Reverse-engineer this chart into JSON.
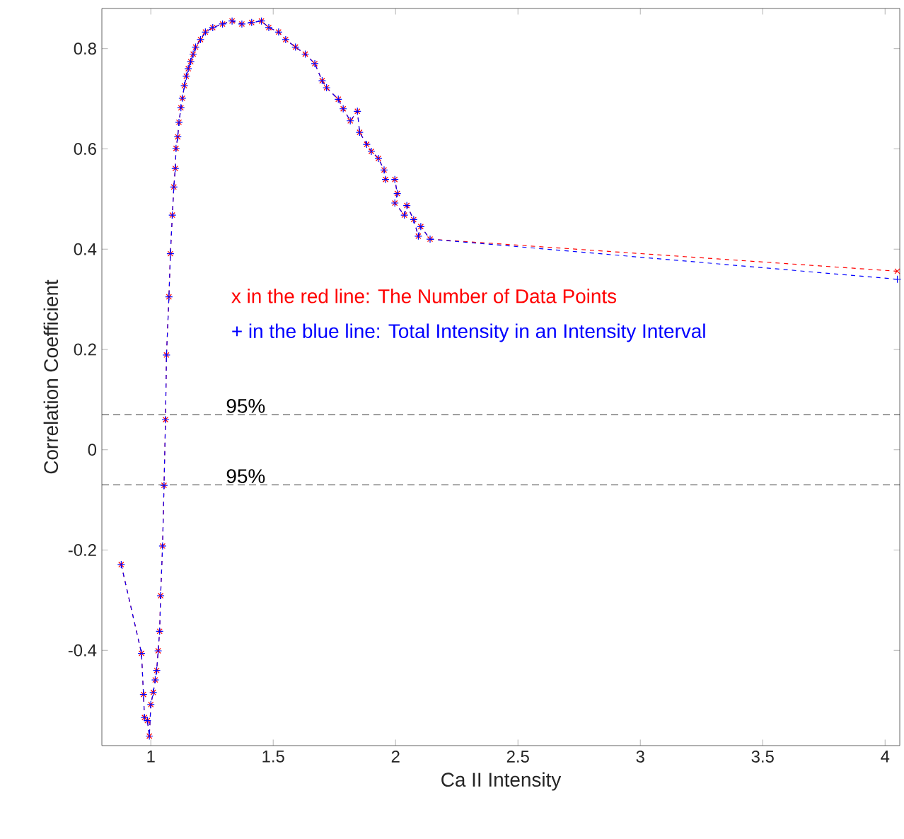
{
  "chart_data": {
    "type": "line",
    "xlabel": "Ca II  Intensity",
    "ylabel": "Correlation Coefficient",
    "x": [
      0.879,
      0.962,
      0.97,
      0.974,
      0.986,
      0.994,
      1.0,
      1.01,
      1.018,
      1.024,
      1.03,
      1.036,
      1.04,
      1.048,
      1.054,
      1.06,
      1.064,
      1.074,
      1.08,
      1.088,
      1.094,
      1.1,
      1.103,
      1.11,
      1.115,
      1.123,
      1.129,
      1.137,
      1.145,
      1.153,
      1.163,
      1.173,
      1.183,
      1.203,
      1.223,
      1.253,
      1.293,
      1.332,
      1.372,
      1.412,
      1.452,
      1.482,
      1.522,
      1.551,
      1.591,
      1.631,
      1.67,
      1.7,
      1.718,
      1.766,
      1.786,
      1.815,
      1.844,
      1.853,
      1.882,
      1.901,
      1.93,
      1.953,
      1.959,
      1.997,
      2.007,
      1.997,
      2.036,
      2.046,
      2.074,
      2.093,
      2.103,
      2.141,
      4.05
    ],
    "series": [
      {
        "name": "x in the red line: The Number of Data Points",
        "color": "#ff0000",
        "marker": "cross",
        "values": [
          -0.229,
          -0.406,
          -0.488,
          -0.534,
          -0.54,
          -0.571,
          -0.508,
          -0.484,
          -0.459,
          -0.44,
          -0.401,
          -0.362,
          -0.291,
          -0.192,
          -0.071,
          0.06,
          0.189,
          0.305,
          0.391,
          0.468,
          0.524,
          0.561,
          0.601,
          0.624,
          0.653,
          0.682,
          0.701,
          0.726,
          0.745,
          0.76,
          0.774,
          0.789,
          0.803,
          0.818,
          0.833,
          0.842,
          0.849,
          0.855,
          0.849,
          0.852,
          0.855,
          0.842,
          0.833,
          0.818,
          0.803,
          0.789,
          0.77,
          0.736,
          0.722,
          0.699,
          0.68,
          0.656,
          0.675,
          0.633,
          0.609,
          0.595,
          0.581,
          0.558,
          0.539,
          0.539,
          0.511,
          0.492,
          0.468,
          0.487,
          0.459,
          0.426,
          0.445,
          0.42,
          0.356
        ]
      },
      {
        "name": "+ in the blue line:  Total Intensity in an Intensity Interval",
        "color": "#0000ff",
        "marker": "plus",
        "values": [
          -0.229,
          -0.406,
          -0.488,
          -0.534,
          -0.54,
          -0.571,
          -0.508,
          -0.484,
          -0.459,
          -0.44,
          -0.401,
          -0.362,
          -0.291,
          -0.192,
          -0.071,
          0.06,
          0.189,
          0.305,
          0.391,
          0.468,
          0.524,
          0.561,
          0.601,
          0.624,
          0.653,
          0.682,
          0.701,
          0.726,
          0.745,
          0.76,
          0.774,
          0.789,
          0.803,
          0.818,
          0.833,
          0.842,
          0.849,
          0.855,
          0.849,
          0.852,
          0.855,
          0.842,
          0.833,
          0.818,
          0.803,
          0.789,
          0.77,
          0.736,
          0.722,
          0.699,
          0.68,
          0.656,
          0.675,
          0.633,
          0.609,
          0.595,
          0.581,
          0.558,
          0.539,
          0.539,
          0.511,
          0.492,
          0.468,
          0.487,
          0.459,
          0.426,
          0.445,
          0.42,
          0.34
        ]
      }
    ],
    "line_style": "dashed",
    "legend": "right",
    "xlim": [
      0.8,
      4.06
    ],
    "ylim": [
      -0.59,
      0.88
    ],
    "xticks": [
      1,
      1.5,
      2,
      2.5,
      3,
      3.5,
      4
    ],
    "yticks": [
      -0.4,
      -0.2,
      0,
      0.2,
      0.4,
      0.6,
      0.8
    ],
    "ref_lines": [
      {
        "axis": "y",
        "value": 0.07,
        "color": "#000000",
        "line_style": "dashed"
      },
      {
        "axis": "y",
        "value": -0.07,
        "color": "#000000",
        "line_style": "dashed"
      }
    ],
    "annotations": [
      {
        "text": "95%",
        "x": 1.3,
        "y": 0.07
      },
      {
        "text": "95%",
        "x": 1.3,
        "y": -0.07
      }
    ]
  }
}
